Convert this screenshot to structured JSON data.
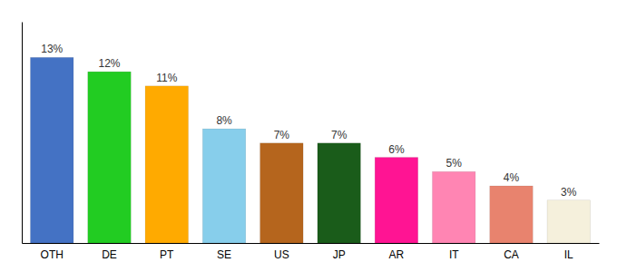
{
  "chart_data": {
    "type": "bar",
    "categories": [
      "OTH",
      "DE",
      "PT",
      "SE",
      "US",
      "JP",
      "AR",
      "IT",
      "CA",
      "IL"
    ],
    "values": [
      13,
      12,
      11,
      8,
      7,
      7,
      6,
      5,
      4,
      3
    ],
    "value_labels": [
      "13%",
      "12%",
      "11%",
      "8%",
      "7%",
      "7%",
      "6%",
      "5%",
      "4%",
      "3%"
    ],
    "colors": [
      "#4472c4",
      "#22cc22",
      "#ffaa00",
      "#87ceeb",
      "#b5651d",
      "#1a5c1a",
      "#ff1493",
      "#ff85b3",
      "#e8836e",
      "#f5f0dc"
    ],
    "ylim": [
      0,
      15.5
    ],
    "data_labels": true,
    "tick_labels": "x"
  }
}
